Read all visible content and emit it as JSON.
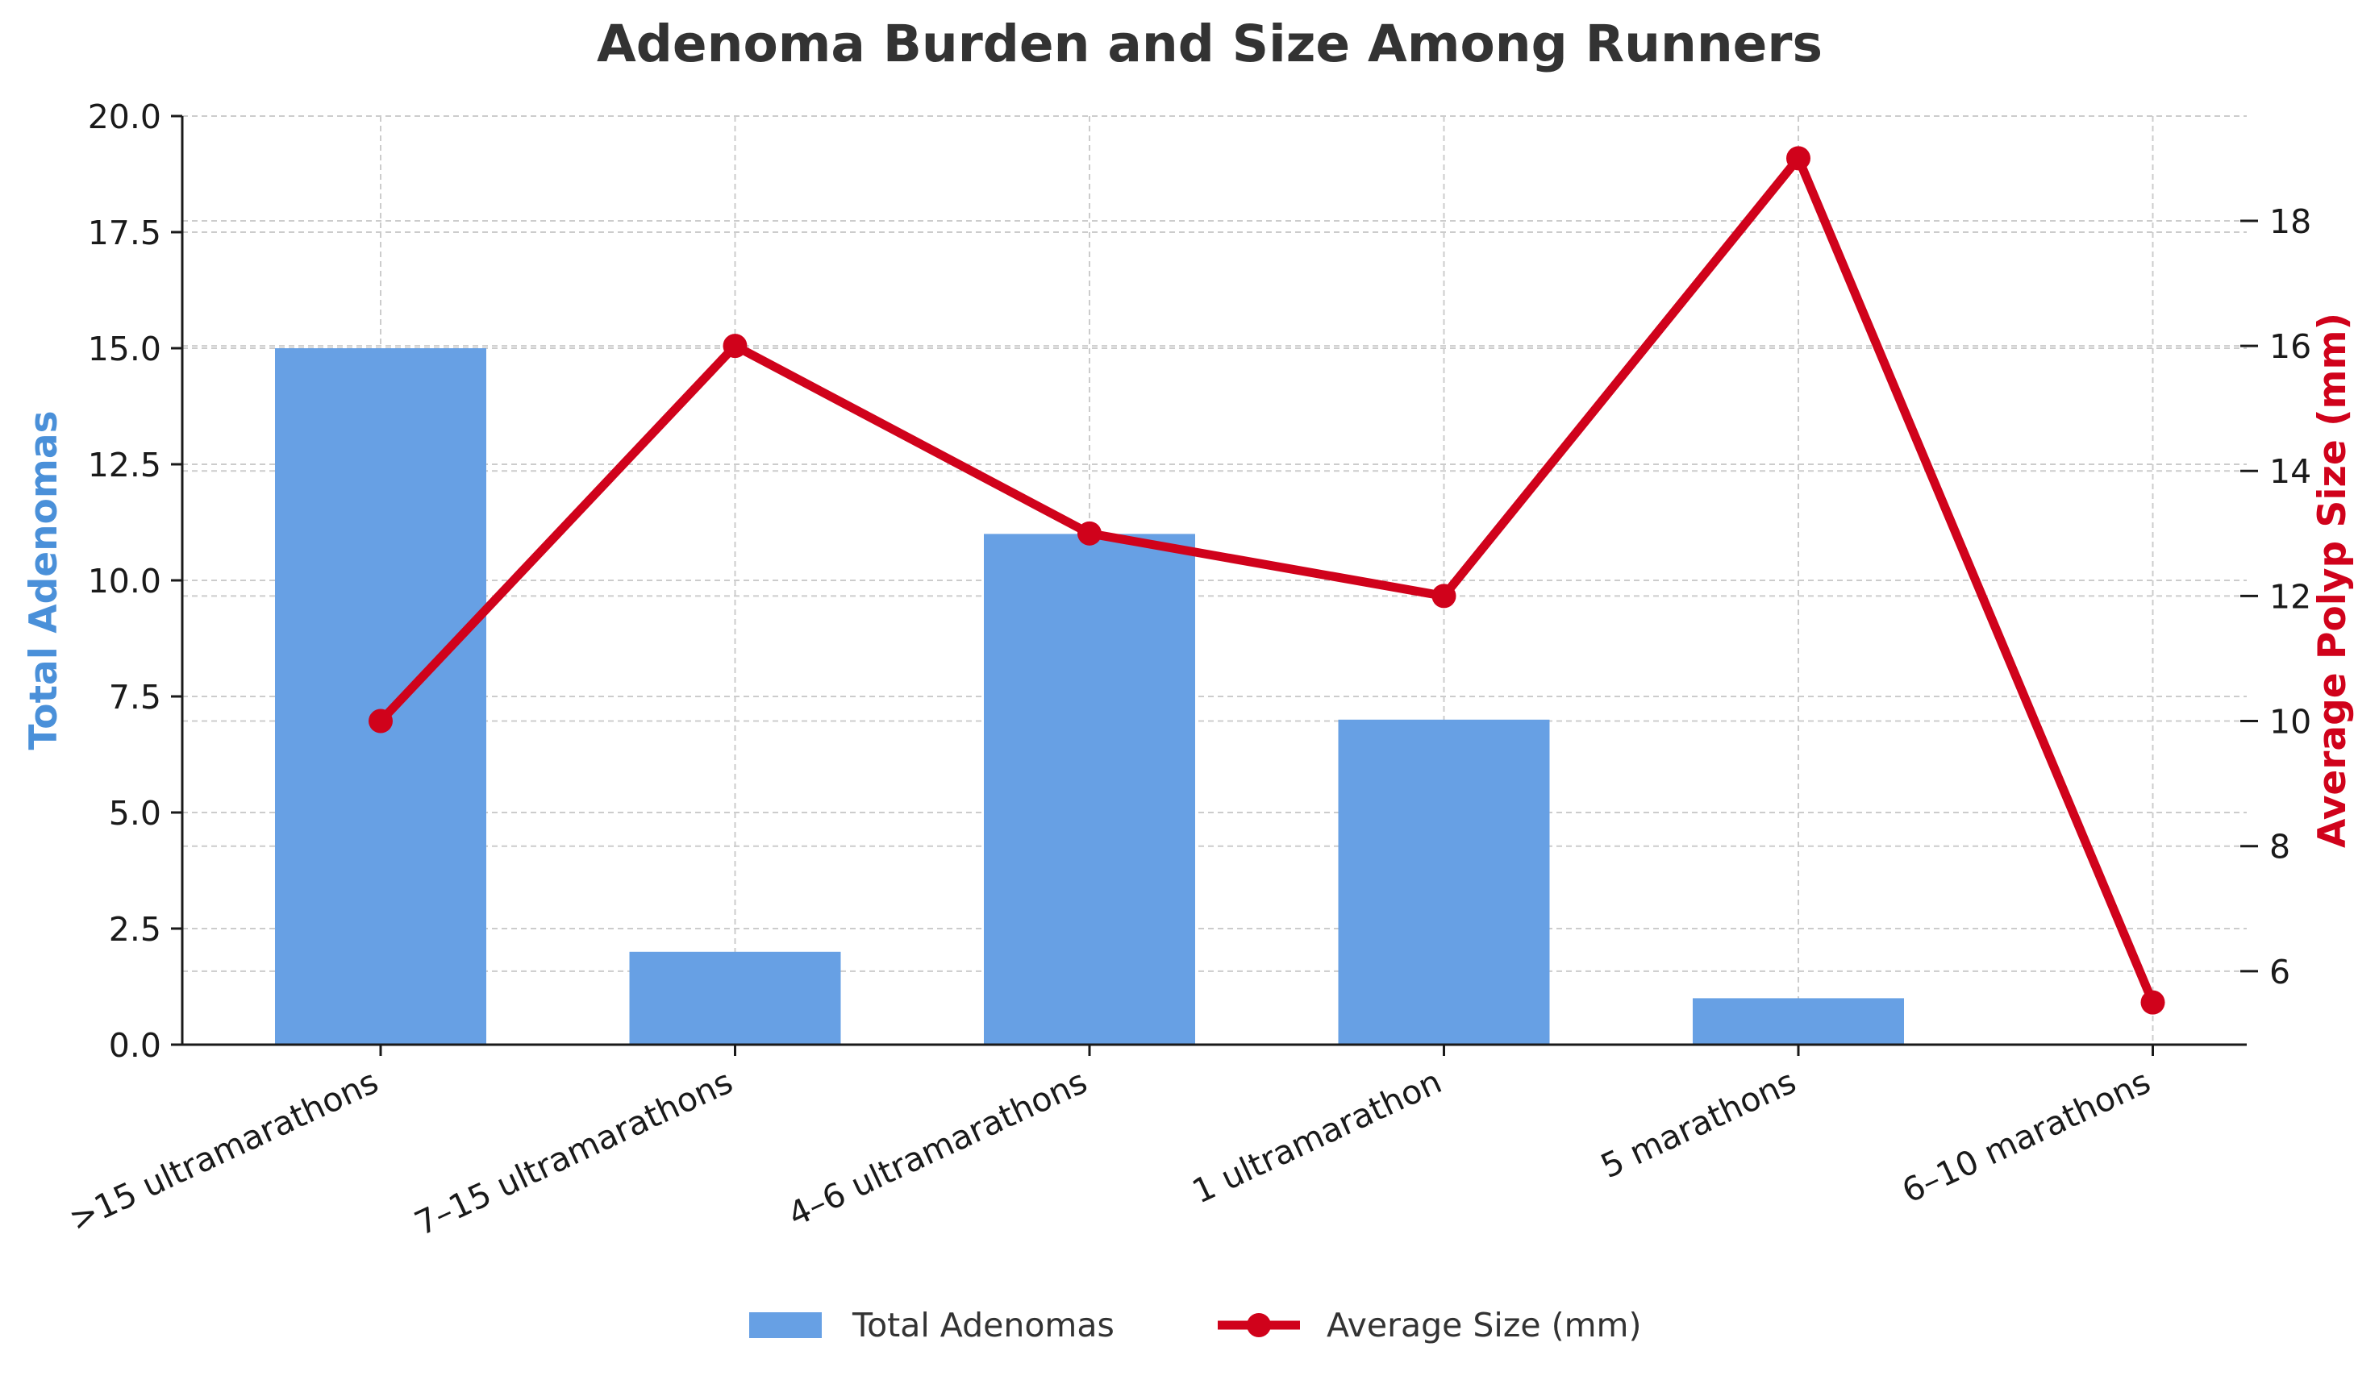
{
  "chart_data": {
    "type": "bar",
    "title": "Adenoma Burden and Size Among Runners",
    "categories": [
      ">15 ultramarathons",
      "7–15 ultramarathons",
      "4–6 ultramarathons",
      "1 ultramarathon",
      "5 marathons",
      "6–10 marathons"
    ],
    "series": [
      {
        "name": "Total Adenomas",
        "type": "bar",
        "axis": "left",
        "color": "#67a0e4",
        "values": [
          15,
          2,
          11,
          7,
          1,
          0
        ]
      },
      {
        "name": "Average Size (mm)",
        "type": "line",
        "axis": "right",
        "color": "#d0021b",
        "marker": "circle",
        "values": [
          10,
          16,
          13,
          12,
          19,
          5.5
        ]
      }
    ],
    "y_left": {
      "label": "Total Adenomas",
      "label_color": "#4a90d9",
      "ylim": [
        0,
        20
      ],
      "ticks": [
        "0.0",
        "2.5",
        "5.0",
        "7.5",
        "10.0",
        "12.5",
        "15.0",
        "17.5",
        "20.0"
      ],
      "tick_values": [
        0,
        2.5,
        5,
        7.5,
        10,
        12.5,
        15,
        17.5,
        20
      ]
    },
    "y_right": {
      "label": "Average Polyp Size (mm)",
      "label_color": "#d0021b",
      "ylim": [
        4.825,
        19.675
      ],
      "ticks": [
        "6",
        "8",
        "10",
        "12",
        "14",
        "16",
        "18"
      ],
      "tick_values": [
        6,
        8,
        10,
        12,
        14,
        16,
        18
      ]
    },
    "grid": true,
    "legend_position": "bottom-center"
  }
}
